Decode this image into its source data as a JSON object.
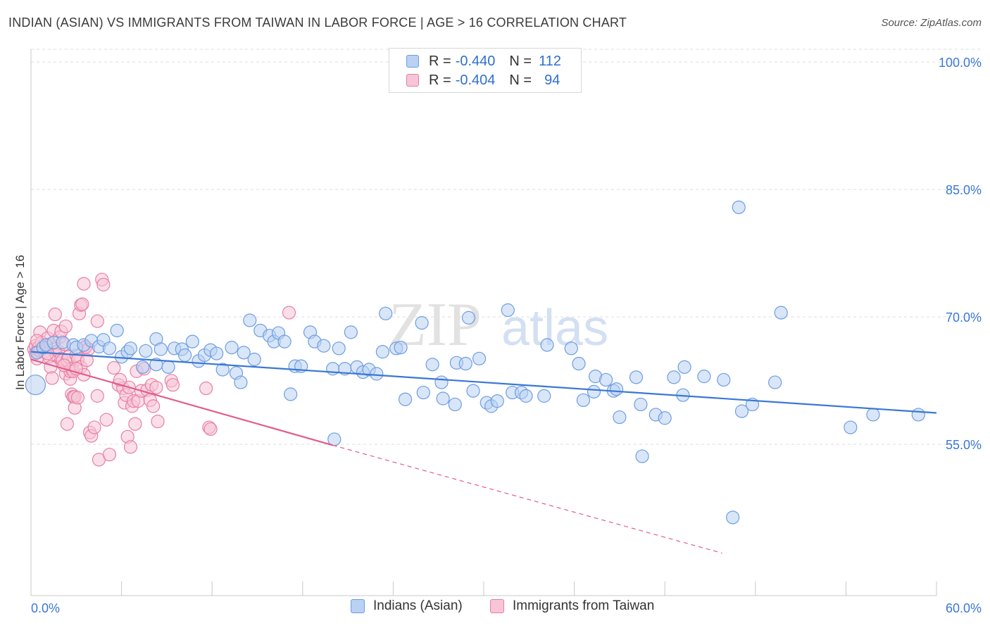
{
  "title": "INDIAN (ASIAN) VS IMMIGRANTS FROM TAIWAN IN LABOR FORCE | AGE > 16 CORRELATION CHART",
  "source": "Source: ZipAtlas.com",
  "watermark": {
    "zip": "ZIP",
    "atlas": "atlas"
  },
  "legend": {
    "r_label": "R =",
    "n_label": "N =",
    "series": [
      {
        "name": "Indians (Asian)",
        "r": "-0.440",
        "n": "112",
        "color": "#6d9de3",
        "fill": "#b9d1f3"
      },
      {
        "name": "Immigrants from Taiwan",
        "r": "-0.404",
        "n": "94",
        "color": "#e77fa2",
        "fill": "#f7c5d5"
      }
    ]
  },
  "chart_data": {
    "type": "scatter",
    "title": "INDIAN (ASIAN) VS IMMIGRANTS FROM TAIWAN IN LABOR FORCE | AGE > 16 CORRELATION CHART",
    "xlabel": "",
    "ylabel": "In Labor Force | Age > 16",
    "xlim": [
      0,
      60
    ],
    "ylim": [
      37.2,
      101.5
    ],
    "x_tick_labels": [
      "0.0%",
      "60.0%"
    ],
    "y_ticks": [
      100,
      85,
      70,
      55
    ],
    "y_tick_labels": [
      "100.0%",
      "85.0%",
      "70.0%",
      "55.0%"
    ],
    "grid": true,
    "series": [
      {
        "name": "Indians (Asian)",
        "color": "#3a78d4",
        "fill": "#b9d1f3",
        "trend": {
          "x": [
            0,
            60
          ],
          "y": [
            65.9,
            58.7
          ],
          "style": "solid"
        },
        "points": [
          [
            0.3,
            62.0,
            14
          ],
          [
            0.4,
            65.8,
            9
          ],
          [
            0.8,
            66.4,
            9
          ],
          [
            1.0,
            66.7,
            9
          ],
          [
            1.5,
            67.0,
            9
          ],
          [
            2.1,
            67.0,
            9
          ],
          [
            2.8,
            66.7,
            9
          ],
          [
            3.0,
            66.4,
            9
          ],
          [
            3.5,
            66.7,
            9
          ],
          [
            4.0,
            67.2,
            9
          ],
          [
            4.5,
            66.5,
            9
          ],
          [
            4.8,
            67.3,
            9
          ],
          [
            5.2,
            66.3,
            9
          ],
          [
            5.7,
            68.4,
            9
          ],
          [
            6.0,
            65.3,
            9
          ],
          [
            6.4,
            65.9,
            9
          ],
          [
            6.6,
            66.3,
            9
          ],
          [
            7.4,
            64.1,
            9
          ],
          [
            7.6,
            66.0,
            9
          ],
          [
            8.3,
            64.4,
            9
          ],
          [
            8.3,
            67.4,
            9
          ],
          [
            8.6,
            66.2,
            9
          ],
          [
            9.1,
            64.1,
            9
          ],
          [
            9.5,
            66.3,
            9
          ],
          [
            10.0,
            66.2,
            9
          ],
          [
            10.2,
            65.5,
            9
          ],
          [
            10.7,
            67.1,
            9
          ],
          [
            11.1,
            64.8,
            9
          ],
          [
            11.5,
            65.5,
            9
          ],
          [
            11.9,
            66.1,
            9
          ],
          [
            12.3,
            65.7,
            9
          ],
          [
            12.7,
            63.8,
            9
          ],
          [
            13.3,
            66.4,
            9
          ],
          [
            13.6,
            63.4,
            9
          ],
          [
            13.9,
            62.3,
            9
          ],
          [
            14.1,
            65.8,
            9
          ],
          [
            14.5,
            69.6,
            9
          ],
          [
            14.8,
            65.0,
            9
          ],
          [
            15.2,
            68.4,
            9
          ],
          [
            15.8,
            67.8,
            9
          ],
          [
            16.1,
            67.1,
            9
          ],
          [
            16.4,
            68.1,
            9
          ],
          [
            16.8,
            67.1,
            9
          ],
          [
            17.2,
            60.9,
            9
          ],
          [
            17.5,
            64.2,
            9
          ],
          [
            17.9,
            64.2,
            9
          ],
          [
            18.5,
            68.2,
            9
          ],
          [
            18.8,
            67.1,
            9
          ],
          [
            19.4,
            66.6,
            9
          ],
          [
            20.0,
            63.9,
            9
          ],
          [
            20.4,
            66.3,
            9
          ],
          [
            20.8,
            63.9,
            9
          ],
          [
            21.2,
            68.2,
            9
          ],
          [
            21.6,
            64.1,
            9
          ],
          [
            22.0,
            63.5,
            9
          ],
          [
            22.4,
            63.8,
            9
          ],
          [
            22.9,
            63.3,
            9
          ],
          [
            23.3,
            65.9,
            9
          ],
          [
            23.5,
            70.4,
            9
          ],
          [
            24.2,
            66.3,
            9
          ],
          [
            24.5,
            66.4,
            9
          ],
          [
            24.8,
            60.3,
            9
          ],
          [
            25.9,
            69.3,
            9
          ],
          [
            26.0,
            61.1,
            9
          ],
          [
            26.6,
            64.4,
            9
          ],
          [
            27.2,
            62.3,
            9
          ],
          [
            27.3,
            60.4,
            9
          ],
          [
            28.1,
            59.7,
            9
          ],
          [
            28.2,
            64.6,
            9
          ],
          [
            28.8,
            64.5,
            9
          ],
          [
            29.0,
            69.9,
            9
          ],
          [
            29.3,
            61.3,
            9
          ],
          [
            29.7,
            65.1,
            9
          ],
          [
            30.2,
            59.9,
            9
          ],
          [
            30.5,
            59.5,
            9
          ],
          [
            30.9,
            60.1,
            9
          ],
          [
            31.6,
            70.8,
            9
          ],
          [
            31.9,
            61.1,
            9
          ],
          [
            32.5,
            61.1,
            9
          ],
          [
            32.8,
            60.7,
            9
          ],
          [
            34.0,
            60.7,
            9
          ],
          [
            34.2,
            66.7,
            9
          ],
          [
            35.8,
            66.3,
            9
          ],
          [
            36.3,
            64.5,
            9
          ],
          [
            36.6,
            60.2,
            9
          ],
          [
            37.3,
            61.2,
            9
          ],
          [
            37.4,
            63.0,
            9
          ],
          [
            38.1,
            62.6,
            9
          ],
          [
            38.6,
            61.3,
            9
          ],
          [
            38.8,
            61.5,
            9
          ],
          [
            39.0,
            58.2,
            9
          ],
          [
            40.1,
            62.9,
            9
          ],
          [
            40.4,
            59.7,
            9
          ],
          [
            40.5,
            53.6,
            9
          ],
          [
            41.4,
            58.5,
            9
          ],
          [
            42.0,
            58.1,
            9
          ],
          [
            42.6,
            62.9,
            9
          ],
          [
            43.2,
            60.8,
            9
          ],
          [
            43.3,
            64.1,
            9
          ],
          [
            44.6,
            63.0,
            9
          ],
          [
            45.9,
            62.6,
            9
          ],
          [
            46.5,
            46.4,
            9
          ],
          [
            46.9,
            82.9,
            9
          ],
          [
            47.1,
            58.9,
            9
          ],
          [
            47.8,
            59.7,
            9
          ],
          [
            49.3,
            62.3,
            9
          ],
          [
            49.7,
            70.5,
            9
          ],
          [
            54.3,
            57.0,
            9
          ],
          [
            55.8,
            58.5,
            9
          ],
          [
            58.8,
            58.5,
            9
          ],
          [
            20.1,
            55.6,
            9
          ]
        ]
      },
      {
        "name": "Immigrants from Taiwan",
        "color": "#e25c8b",
        "fill": "#f7c5d5",
        "trend": {
          "x": [
            0,
            20.0,
            45.8
          ],
          "y": [
            65.0,
            54.9,
            42.2
          ],
          "style": "solid-then-dashed"
        },
        "points": [
          [
            0.2,
            66.2,
            9
          ],
          [
            0.3,
            66.6,
            9
          ],
          [
            0.3,
            65.7,
            9
          ],
          [
            0.4,
            65.1,
            9
          ],
          [
            0.5,
            66.4,
            9
          ],
          [
            0.6,
            66.0,
            9
          ],
          [
            0.6,
            68.2,
            9
          ],
          [
            0.7,
            67.0,
            9
          ],
          [
            0.8,
            66.3,
            9
          ],
          [
            0.9,
            65.9,
            9
          ],
          [
            1.0,
            66.5,
            9
          ],
          [
            1.1,
            67.5,
            9
          ],
          [
            1.2,
            65.3,
            9
          ],
          [
            1.3,
            64.1,
            9
          ],
          [
            1.3,
            66.8,
            9
          ],
          [
            1.4,
            62.8,
            9
          ],
          [
            1.5,
            68.4,
            9
          ],
          [
            1.6,
            66.2,
            9
          ],
          [
            1.6,
            70.3,
            9
          ],
          [
            1.7,
            65.5,
            9
          ],
          [
            1.8,
            66.0,
            9
          ],
          [
            1.9,
            67.6,
            9
          ],
          [
            2.0,
            65.1,
            9
          ],
          [
            2.0,
            68.3,
            9
          ],
          [
            2.1,
            64.9,
            9
          ],
          [
            2.2,
            66.8,
            9
          ],
          [
            2.3,
            68.9,
            9
          ],
          [
            2.3,
            63.3,
            9
          ],
          [
            2.4,
            57.4,
            9
          ],
          [
            2.4,
            64.9,
            9
          ],
          [
            2.5,
            65.3,
            9
          ],
          [
            2.6,
            62.7,
            9
          ],
          [
            2.6,
            63.6,
            9
          ],
          [
            2.7,
            60.9,
            9
          ],
          [
            2.7,
            63.9,
            9
          ],
          [
            2.8,
            60.6,
            9
          ],
          [
            2.8,
            63.6,
            9
          ],
          [
            2.9,
            60.6,
            9
          ],
          [
            2.9,
            59.3,
            9
          ],
          [
            3.0,
            65.5,
            9
          ],
          [
            3.1,
            65.0,
            9
          ],
          [
            3.1,
            60.5,
            9
          ],
          [
            3.2,
            70.4,
            9
          ],
          [
            3.3,
            71.4,
            9
          ],
          [
            3.3,
            64.1,
            9
          ],
          [
            3.4,
            71.5,
            9
          ],
          [
            3.5,
            73.9,
            9
          ],
          [
            3.5,
            63.2,
            9
          ],
          [
            3.6,
            66.4,
            9
          ],
          [
            3.6,
            66.5,
            9
          ],
          [
            3.8,
            66.2,
            9
          ],
          [
            3.9,
            56.4,
            9
          ],
          [
            4.0,
            56.0,
            9
          ],
          [
            4.2,
            57.0,
            9
          ],
          [
            4.4,
            60.7,
            9
          ],
          [
            4.4,
            69.5,
            9
          ],
          [
            4.5,
            53.2,
            9
          ],
          [
            4.7,
            74.4,
            9
          ],
          [
            4.8,
            73.8,
            9
          ],
          [
            5.0,
            57.9,
            9
          ],
          [
            5.2,
            53.8,
            9
          ],
          [
            5.5,
            64.0,
            9
          ],
          [
            5.8,
            62.0,
            9
          ],
          [
            6.1,
            61.6,
            9
          ],
          [
            6.2,
            59.9,
            9
          ],
          [
            6.3,
            60.8,
            9
          ],
          [
            6.4,
            55.9,
            9
          ],
          [
            6.5,
            61.7,
            9
          ],
          [
            6.6,
            54.7,
            9
          ],
          [
            6.7,
            59.5,
            9
          ],
          [
            6.8,
            60.1,
            9
          ],
          [
            6.9,
            57.4,
            9
          ],
          [
            7.0,
            63.6,
            9
          ],
          [
            7.1,
            60.1,
            9
          ],
          [
            7.3,
            61.3,
            9
          ],
          [
            7.5,
            63.9,
            9
          ],
          [
            7.7,
            61.4,
            9
          ],
          [
            7.9,
            60.2,
            9
          ],
          [
            8.0,
            62.0,
            9
          ],
          [
            8.1,
            59.5,
            9
          ],
          [
            8.3,
            61.7,
            9
          ],
          [
            8.4,
            57.7,
            9
          ],
          [
            9.3,
            62.5,
            9
          ],
          [
            9.4,
            62.0,
            9
          ],
          [
            11.6,
            61.6,
            9
          ],
          [
            11.8,
            57.0,
            9
          ],
          [
            11.9,
            56.8,
            9
          ],
          [
            17.1,
            70.5,
            9
          ],
          [
            0.4,
            67.2,
            9
          ],
          [
            1.1,
            65.7,
            9
          ],
          [
            2.2,
            64.3,
            9
          ],
          [
            3.0,
            63.9,
            9
          ],
          [
            3.7,
            64.9,
            9
          ],
          [
            5.9,
            62.6,
            9
          ]
        ]
      }
    ]
  }
}
